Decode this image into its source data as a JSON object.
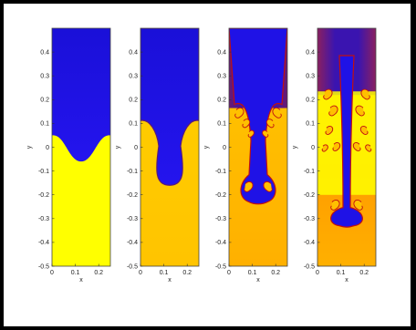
{
  "chart_data": {
    "type": "heatmap",
    "description_style": "fluid-instability-panels",
    "colors": {
      "heavy_fluid": "#1f12e6",
      "heavy_fluid_dark": "#3a1496",
      "purple": "#5a1a78",
      "light_fluid": "#ffff00",
      "light_fluid_orange": "#ffc000",
      "deep_orange": "#ff9a00",
      "interface_red": "#c01010"
    },
    "axes": {
      "xlabel": "x",
      "ylabel": "y",
      "xlim": [
        0,
        0.25
      ],
      "ylim": [
        -0.5,
        0.5
      ],
      "x_ticks": [
        0,
        0.1,
        0.2
      ],
      "x_tick_labels": [
        "0",
        "0.1",
        "0.2"
      ],
      "y_ticks": [
        0.4,
        0.3,
        0.2,
        0.1,
        0,
        -0.1,
        -0.2,
        -0.3,
        -0.4,
        -0.5
      ],
      "y_tick_labels": [
        "0.4",
        "0.3",
        "0.2",
        "0.1",
        "0",
        "-0.1",
        "-0.2",
        "-0.3",
        "-0.4",
        "-0.5"
      ]
    },
    "panels": [
      {
        "stage": 1,
        "interface_top": 0.05,
        "interface_bottom": -0.06
      },
      {
        "stage": 2,
        "interface_top": 0.12,
        "interface_bottom": -0.16
      },
      {
        "stage": 3,
        "interface_top": 0.18,
        "interface_bottom": -0.23
      },
      {
        "stage": 4,
        "interface_top": 0.25,
        "interface_bottom": -0.33
      }
    ]
  }
}
